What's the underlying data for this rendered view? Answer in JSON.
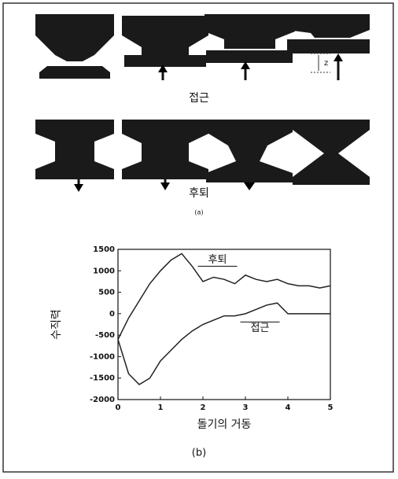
{
  "panel_a": {
    "approach_label": "접근",
    "retreat_label": "후퇴",
    "panel_label": "(a)",
    "gap_label": "z"
  },
  "panel_b_label": "(b)",
  "chart_data": {
    "type": "line",
    "x_label": "돌기의 거동",
    "y_label": "수직력",
    "x": [
      0,
      0.25,
      0.5,
      0.75,
      1,
      1.25,
      1.5,
      1.75,
      2,
      2.25,
      2.5,
      2.75,
      3,
      3.25,
      3.5,
      3.75,
      4,
      4.25,
      4.5,
      4.75,
      5
    ],
    "series": [
      {
        "name": "후퇴",
        "color": "#222222",
        "values": [
          -600,
          -100,
          300,
          700,
          1000,
          1250,
          1400,
          1100,
          750,
          850,
          800,
          700,
          900,
          800,
          750,
          800,
          700,
          650,
          650,
          600,
          650
        ]
      },
      {
        "name": "접근",
        "color": "#222222",
        "values": [
          -600,
          -1400,
          -1650,
          -1500,
          -1100,
          -850,
          -600,
          -400,
          -250,
          -150,
          -50,
          -50,
          0,
          100,
          200,
          250,
          0,
          0,
          0,
          0,
          0
        ]
      }
    ],
    "xlim": [
      0,
      5
    ],
    "xticks": [
      0,
      1,
      2,
      3,
      4,
      5
    ],
    "ylim": [
      -2000,
      1500
    ],
    "yticks": [
      -2000,
      -1500,
      -1000,
      -500,
      0,
      500,
      1000,
      1500
    ]
  }
}
